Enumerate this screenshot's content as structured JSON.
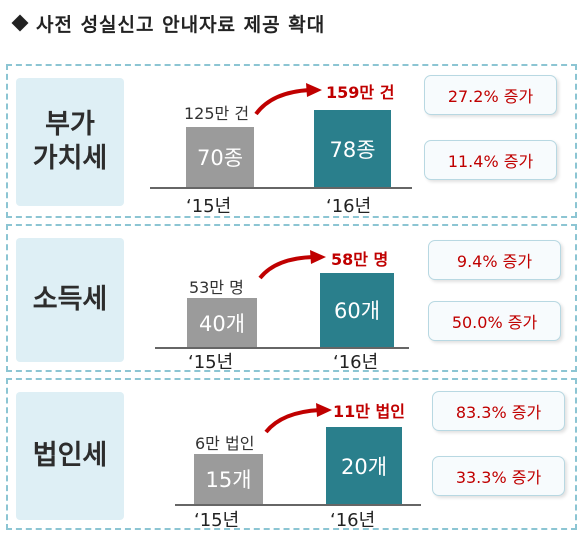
{
  "title": "사전 성실신고 안내자료 제공 확대",
  "sections": [
    {
      "label": "부가\n가치세",
      "old_value_text": "125만 건",
      "new_value_text": "159만 건",
      "old_bar_label": "70종",
      "new_bar_label": "78종",
      "old_year": "‘15년",
      "new_year": "‘16년",
      "increase_top": "27.2% 증가",
      "increase_bottom": "11.4% 증가"
    },
    {
      "label": "소득세",
      "old_value_text": "53만 명",
      "new_value_text": "58만 명",
      "old_bar_label": "40개",
      "new_bar_label": "60개",
      "old_year": "‘15년",
      "new_year": "‘16년",
      "increase_top": "9.4% 증가",
      "increase_bottom": "50.0% 증가"
    },
    {
      "label": "법인세",
      "old_value_text": "6만 법인",
      "new_value_text": "11만 법인",
      "old_bar_label": "15개",
      "new_bar_label": "20개",
      "old_year": "‘15년",
      "new_year": "‘16년",
      "increase_top": "83.3% 증가",
      "increase_bottom": "33.3% 증가"
    }
  ],
  "colors": {
    "old_bar": "#9b9b9b",
    "new_bar": "#2a7f8c",
    "increase_text": "#c00000",
    "panel_border": "#8cc5d3",
    "label_bg": "#deeff5"
  }
}
